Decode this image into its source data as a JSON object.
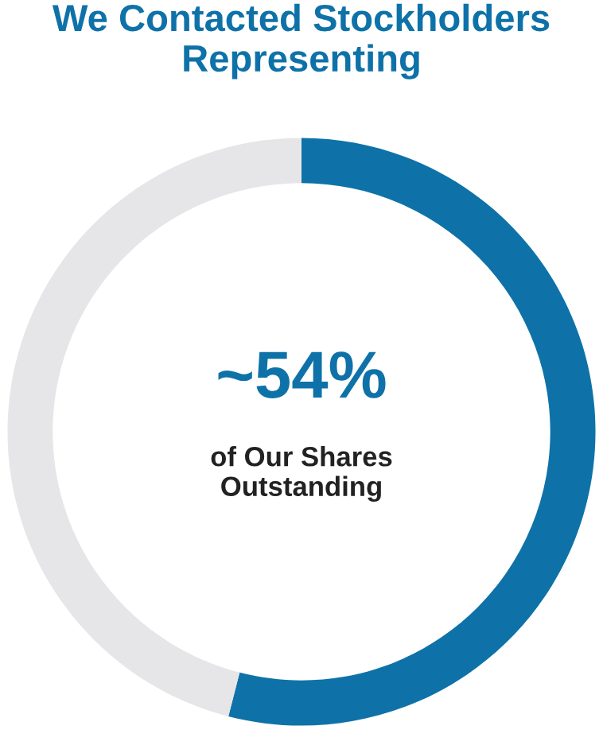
{
  "chart_data": {
    "type": "donut",
    "title": "We Contacted Stockholders Representing",
    "categories": [
      null,
      null
    ],
    "values": [
      54,
      46
    ],
    "colors": [
      "#0e72a8",
      "#e6e6e8"
    ],
    "value_labels": [
      "~54%",
      null
    ],
    "annotations": [
      "of Our Shares Outstanding"
    ],
    "legend": false
  }
}
